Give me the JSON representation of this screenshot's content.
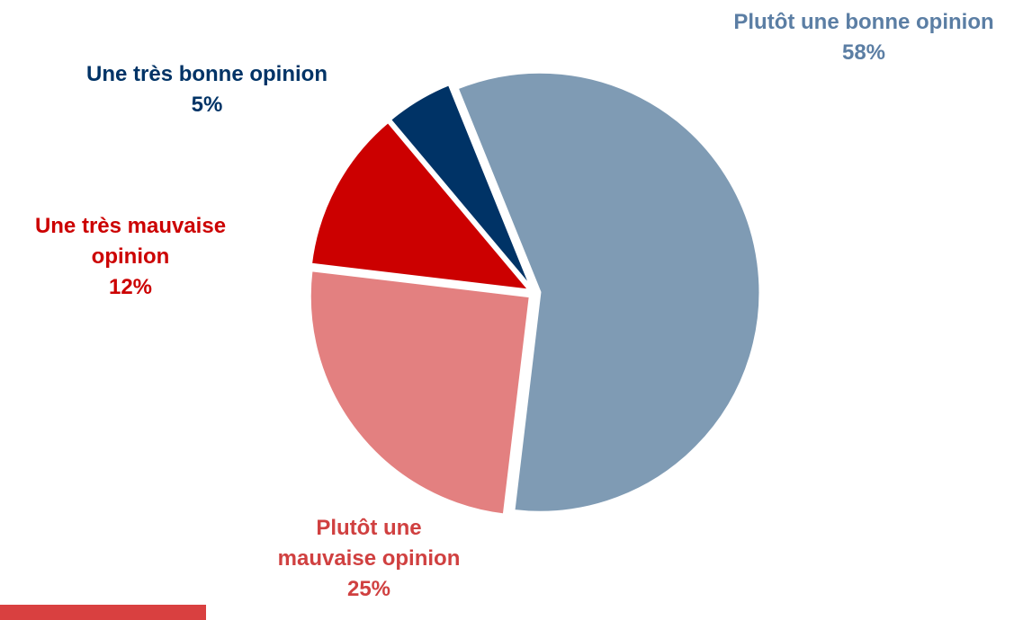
{
  "chart_data": {
    "type": "pie",
    "title": "",
    "slices": [
      {
        "label_lines": [
          "Une très bonne opinion"
        ],
        "value": 5,
        "value_label": "5%",
        "color": "#003366",
        "text_color": "#003366"
      },
      {
        "label_lines": [
          "Plutôt une bonne opinion"
        ],
        "value": 58,
        "value_label": "58%",
        "color": "#7f9bb4",
        "text_color": "#5b7ea4"
      },
      {
        "label_lines": [
          "Plutôt une",
          "mauvaise opinion"
        ],
        "value": 25,
        "value_label": "25%",
        "color": "#e38080",
        "text_color": "#d04040"
      },
      {
        "label_lines": [
          "Une très mauvaise",
          "opinion"
        ],
        "value": 12,
        "value_label": "12%",
        "color": "#cc0000",
        "text_color": "#cc0000"
      }
    ],
    "start_angle_deg": -40,
    "direction": "clockwise",
    "exploded": true,
    "legend": "none"
  },
  "decoration": {
    "footer_bar_color": "#d94040"
  }
}
